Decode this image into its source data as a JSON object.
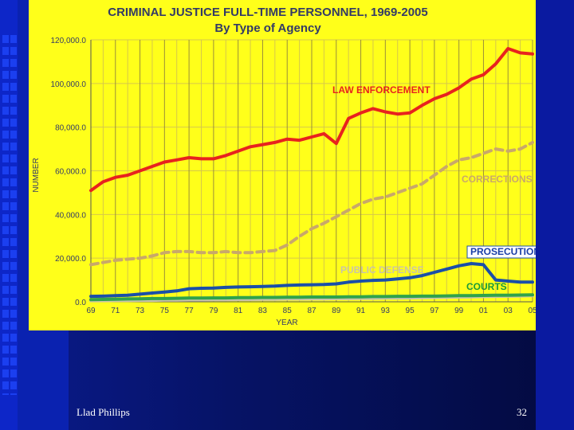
{
  "slide": {
    "footer_author": "Llad Phillips",
    "page_number": "32"
  },
  "chart_data": {
    "type": "line",
    "title": "CRIMINAL JUSTICE FULL-TIME PERSONNEL, 1969-2005",
    "subtitle": "By Type of Agency",
    "xlabel": "YEAR",
    "ylabel": "NUMBER",
    "ylim": [
      0,
      120000
    ],
    "yticks": [
      "0.0",
      "20,000.0",
      "40,000.0",
      "60,000.0",
      "80,000.0",
      "100,000.0",
      "120,000.0"
    ],
    "xlim": [
      1969,
      2005
    ],
    "xticks": [
      "69",
      "71",
      "73",
      "75",
      "77",
      "79",
      "81",
      "83",
      "85",
      "87",
      "89",
      "91",
      "93",
      "95",
      "97",
      "99",
      "01",
      "03",
      "05"
    ],
    "grid": true,
    "background": "#ffff1a",
    "x": [
      1969,
      1970,
      1971,
      1972,
      1973,
      1974,
      1975,
      1976,
      1977,
      1978,
      1979,
      1980,
      1981,
      1982,
      1983,
      1984,
      1985,
      1986,
      1987,
      1988,
      1989,
      1990,
      1991,
      1992,
      1993,
      1994,
      1995,
      1996,
      1997,
      1998,
      1999,
      2000,
      2001,
      2002,
      2003,
      2004,
      2005
    ],
    "series": [
      {
        "name": "LAW ENFORCEMENT",
        "color": "#e8231e",
        "style": "solid",
        "label_color": "#e8231e",
        "values": [
          51000,
          55000,
          57000,
          58000,
          60000,
          62000,
          64000,
          65000,
          66000,
          65500,
          65500,
          67000,
          69000,
          71000,
          72000,
          73000,
          74500,
          74000,
          75500,
          77000,
          72500,
          84000,
          86500,
          88500,
          87000,
          86000,
          86500,
          90000,
          93000,
          95000,
          98000,
          102000,
          104000,
          109000,
          116000,
          114000,
          113500
        ]
      },
      {
        "name": "CORRECTIONS",
        "color": "#c9a86a",
        "style": "dashed",
        "label_color": "#c9a86a",
        "values": [
          17000,
          18000,
          19000,
          19500,
          20000,
          21000,
          22500,
          23000,
          23000,
          22500,
          22500,
          23000,
          22500,
          22500,
          23000,
          23500,
          26000,
          30000,
          33500,
          36000,
          39000,
          42000,
          45000,
          47000,
          48000,
          50000,
          52000,
          54000,
          58000,
          62000,
          65000,
          66000,
          68000,
          70000,
          69000,
          70000,
          73000
        ]
      },
      {
        "name": "PROSECUTION",
        "color": "#1a4fa8",
        "style": "solid",
        "label_color": "#1a3ea8",
        "values": [
          2500,
          2600,
          2800,
          3000,
          3500,
          4000,
          4500,
          5000,
          6000,
          6200,
          6300,
          6600,
          6800,
          6900,
          7000,
          7200,
          7500,
          7700,
          7800,
          7900,
          8200,
          9000,
          9500,
          9800,
          10000,
          10500,
          11000,
          12000,
          13500,
          15000,
          16500,
          17500,
          17000,
          10000,
          9500,
          9000,
          9000
        ]
      },
      {
        "name": "PUBLIC DEFENSE",
        "color": "#c9c4a8",
        "style": "solid",
        "label_color": "#c9c4a8",
        "values": [
          500,
          500,
          600,
          600,
          700,
          700,
          800,
          800,
          900,
          900,
          1000,
          1000,
          1100,
          1100,
          1200,
          1200,
          1300,
          1300,
          1400,
          1400,
          1500,
          1500,
          1600,
          1600,
          1700,
          1700,
          1800,
          1900,
          2000,
          2100,
          2200,
          2300,
          2400,
          2500,
          2600,
          2700,
          2800
        ]
      },
      {
        "name": "COURTS",
        "color": "#2fa34a",
        "style": "solid",
        "label_color": "#1a9a3a",
        "values": [
          1000,
          1100,
          1200,
          1300,
          1400,
          1500,
          1500,
          1600,
          1700,
          1700,
          1800,
          1800,
          1900,
          1900,
          2000,
          2000,
          2100,
          2100,
          2200,
          2200,
          2200,
          2300,
          2300,
          2400,
          2400,
          2500,
          2500,
          2600,
          2600,
          2700,
          2800,
          2800,
          2900,
          3000,
          3000,
          3100,
          3200
        ]
      }
    ]
  }
}
